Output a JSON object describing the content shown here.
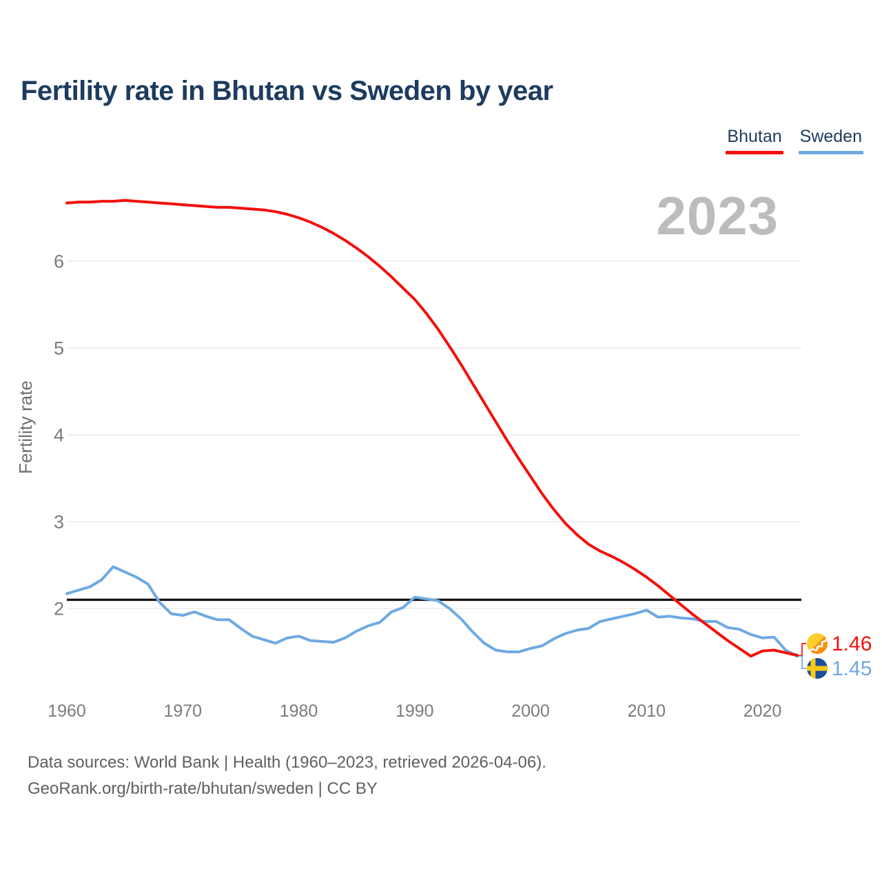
{
  "title": "Fertility rate in Bhutan vs Sweden by year",
  "watermark": "2023",
  "legend": [
    {
      "label": "Bhutan",
      "color": "#f2100c"
    },
    {
      "label": "Sweden",
      "color": "#6fa9e2"
    }
  ],
  "footer": {
    "line1": "Data sources: World Bank | Health (1960–2023, retrieved 2026-04-06).",
    "line2": "GeoRank.org/birth-rate/bhutan/sweden | CC BY"
  },
  "chart_data": {
    "type": "line",
    "title": "Fertility rate in Bhutan vs Sweden by year",
    "xlabel": "",
    "ylabel": "Fertility rate",
    "grid": "horizontal",
    "legend_position": "top-right",
    "x_ticks": [
      1960,
      1970,
      1980,
      1990,
      2000,
      2010,
      2020
    ],
    "y_ticks": [
      2,
      3,
      4,
      5,
      6
    ],
    "xlim": [
      1960,
      2023
    ],
    "ylim": [
      1.3,
      6.95
    ],
    "replacement_line": 2.1,
    "x": [
      1960,
      1961,
      1962,
      1963,
      1964,
      1965,
      1966,
      1967,
      1968,
      1969,
      1970,
      1971,
      1972,
      1973,
      1974,
      1975,
      1976,
      1977,
      1978,
      1979,
      1980,
      1981,
      1982,
      1983,
      1984,
      1985,
      1986,
      1987,
      1988,
      1989,
      1990,
      1991,
      1992,
      1993,
      1994,
      1995,
      1996,
      1997,
      1998,
      1999,
      2000,
      2001,
      2002,
      2003,
      2004,
      2005,
      2006,
      2007,
      2008,
      2009,
      2010,
      2011,
      2012,
      2013,
      2014,
      2015,
      2016,
      2017,
      2018,
      2019,
      2020,
      2021,
      2022,
      2023
    ],
    "series": [
      {
        "name": "Bhutan",
        "color": "#f2100c",
        "values": [
          6.67,
          6.68,
          6.68,
          6.69,
          6.69,
          6.7,
          6.69,
          6.68,
          6.67,
          6.66,
          6.65,
          6.64,
          6.63,
          6.62,
          6.62,
          6.61,
          6.6,
          6.59,
          6.57,
          6.54,
          6.5,
          6.45,
          6.39,
          6.32,
          6.24,
          6.15,
          6.05,
          5.94,
          5.82,
          5.69,
          5.56,
          5.4,
          5.22,
          5.02,
          4.81,
          4.59,
          4.37,
          4.15,
          3.93,
          3.72,
          3.52,
          3.32,
          3.14,
          2.98,
          2.85,
          2.74,
          2.66,
          2.6,
          2.53,
          2.45,
          2.36,
          2.26,
          2.15,
          2.04,
          1.93,
          1.83,
          1.73,
          1.63,
          1.54,
          1.45,
          1.51,
          1.52,
          1.49,
          1.46
        ]
      },
      {
        "name": "Sweden",
        "color": "#6fa9e2",
        "values": [
          2.17,
          2.21,
          2.25,
          2.33,
          2.48,
          2.42,
          2.36,
          2.28,
          2.07,
          1.94,
          1.92,
          1.96,
          1.91,
          1.87,
          1.87,
          1.77,
          1.68,
          1.64,
          1.6,
          1.66,
          1.68,
          1.63,
          1.62,
          1.61,
          1.66,
          1.74,
          1.8,
          1.84,
          1.96,
          2.01,
          2.13,
          2.11,
          2.09,
          2.0,
          1.88,
          1.73,
          1.6,
          1.52,
          1.5,
          1.5,
          1.54,
          1.57,
          1.65,
          1.71,
          1.75,
          1.77,
          1.85,
          1.88,
          1.91,
          1.94,
          1.98,
          1.9,
          1.91,
          1.89,
          1.88,
          1.85,
          1.85,
          1.78,
          1.76,
          1.7,
          1.66,
          1.67,
          1.52,
          1.45
        ]
      }
    ],
    "end_labels": [
      {
        "series": "Bhutan",
        "value": "1.46",
        "flag": "bhutan-flag-icon"
      },
      {
        "series": "Sweden",
        "value": "1.45",
        "flag": "sweden-flag-icon"
      }
    ]
  }
}
